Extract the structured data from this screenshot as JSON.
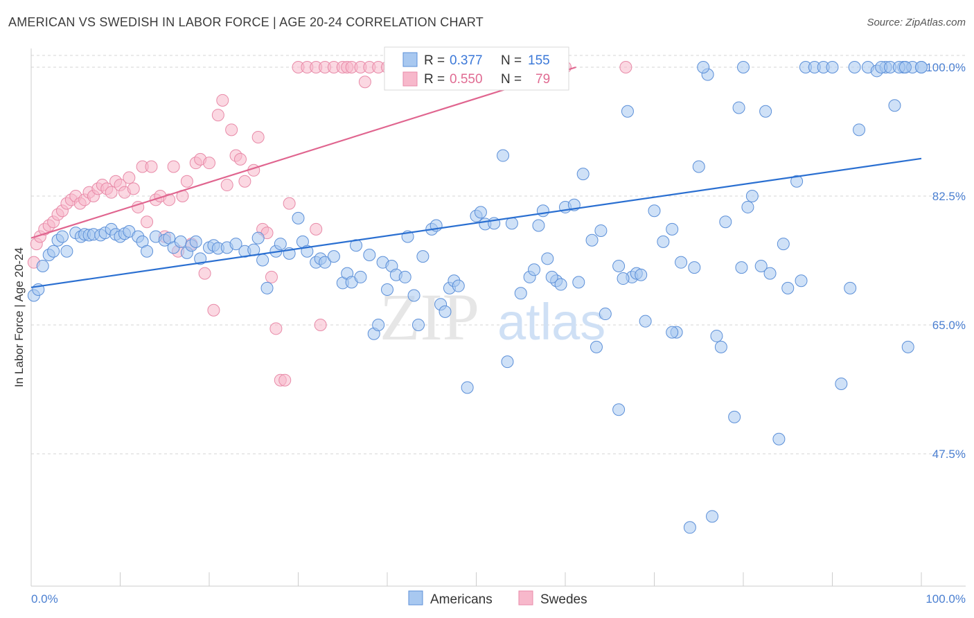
{
  "title": "AMERICAN VS SWEDISH IN LABOR FORCE | AGE 20-24 CORRELATION CHART",
  "source": "Source: ZipAtlas.com",
  "watermark": {
    "zip": "ZIP",
    "atlas": "atlas"
  },
  "colors": {
    "blue_fill": "#a8c8f0",
    "blue_stroke": "#5b8fd8",
    "blue_line": "#2a6fd1",
    "pink_fill": "#f7b8cb",
    "pink_stroke": "#e88aa8",
    "pink_line": "#e0658f",
    "grid": "#d6d6d6",
    "tick_text": "#4a7fd1"
  },
  "legend": {
    "rows": [
      {
        "r_label": "R = ",
        "r_value": "0.377",
        "n_label": "N = ",
        "n_value": "155"
      },
      {
        "r_label": "R = ",
        "r_value": "0.550",
        "n_label": "N = ",
        "n_value": "79"
      }
    ]
  },
  "bottom_legend": [
    "Americans",
    "Swedes"
  ],
  "chart_data": {
    "type": "scatter",
    "title": "AMERICAN VS SWEDISH IN LABOR FORCE | AGE 20-24 CORRELATION CHART",
    "xlabel": "",
    "ylabel": "In Labor Force | Age 20-24",
    "xlim": [
      0,
      100
    ],
    "ylim": [
      32,
      102
    ],
    "x_tick_labels": [
      "0.0%",
      "100.0%"
    ],
    "y_ticks": [
      47.5,
      65.0,
      82.5,
      100.0
    ],
    "y_tick_labels": [
      "47.5%",
      "65.0%",
      "82.5%",
      "100.0%"
    ],
    "grid": "horizontal dashed",
    "legend_position": "top-center",
    "series": [
      {
        "name": "Americans",
        "r": 0.377,
        "n": 155,
        "trend": {
          "x": [
            0,
            100
          ],
          "y": [
            70.1,
            87.6
          ]
        },
        "points": [
          [
            0.3,
            69.0
          ],
          [
            0.8,
            69.8
          ],
          [
            1.3,
            73.0
          ],
          [
            2.0,
            74.5
          ],
          [
            2.5,
            75.0
          ],
          [
            3.0,
            76.5
          ],
          [
            3.5,
            77.0
          ],
          [
            4.0,
            75.0
          ],
          [
            5.0,
            77.5
          ],
          [
            5.6,
            77.0
          ],
          [
            6.0,
            77.3
          ],
          [
            6.5,
            77.2
          ],
          [
            7.0,
            77.3
          ],
          [
            7.8,
            77.2
          ],
          [
            8.3,
            77.5
          ],
          [
            9.0,
            78.0
          ],
          [
            9.5,
            77.3
          ],
          [
            10.0,
            77.0
          ],
          [
            10.5,
            77.4
          ],
          [
            11.0,
            77.7
          ],
          [
            12.0,
            77.0
          ],
          [
            12.5,
            76.3
          ],
          [
            13.0,
            75.0
          ],
          [
            14.0,
            77.0
          ],
          [
            15.0,
            76.5
          ],
          [
            15.5,
            76.8
          ],
          [
            16.0,
            75.5
          ],
          [
            16.8,
            76.3
          ],
          [
            17.5,
            74.8
          ],
          [
            18.0,
            75.8
          ],
          [
            18.5,
            76.3
          ],
          [
            19.0,
            74.0
          ],
          [
            20.0,
            75.5
          ],
          [
            20.5,
            75.8
          ],
          [
            21.0,
            75.4
          ],
          [
            22.0,
            75.5
          ],
          [
            23.0,
            76.0
          ],
          [
            24.0,
            75.0
          ],
          [
            25.0,
            75.2
          ],
          [
            25.5,
            76.8
          ],
          [
            26.0,
            73.8
          ],
          [
            26.5,
            70.0
          ],
          [
            27.5,
            75.0
          ],
          [
            28.0,
            76.0
          ],
          [
            29.0,
            74.7
          ],
          [
            30.0,
            79.5
          ],
          [
            30.5,
            76.3
          ],
          [
            31.0,
            75.0
          ],
          [
            32.0,
            73.5
          ],
          [
            32.5,
            74.0
          ],
          [
            33.0,
            73.5
          ],
          [
            34.0,
            74.3
          ],
          [
            35.0,
            70.7
          ],
          [
            35.5,
            72.0
          ],
          [
            36.0,
            70.8
          ],
          [
            36.5,
            75.8
          ],
          [
            37.0,
            71.5
          ],
          [
            38.0,
            74.5
          ],
          [
            38.5,
            63.8
          ],
          [
            39.0,
            65.0
          ],
          [
            39.5,
            73.5
          ],
          [
            40.0,
            69.8
          ],
          [
            40.5,
            73.0
          ],
          [
            41.0,
            71.8
          ],
          [
            42.0,
            71.5
          ],
          [
            42.3,
            77.0
          ],
          [
            43.0,
            69.0
          ],
          [
            43.5,
            65.0
          ],
          [
            44.0,
            74.3
          ],
          [
            45.0,
            78.0
          ],
          [
            45.5,
            78.5
          ],
          [
            46.0,
            67.8
          ],
          [
            46.5,
            66.8
          ],
          [
            47.0,
            70.0
          ],
          [
            47.5,
            71.0
          ],
          [
            48.0,
            70.3
          ],
          [
            49.0,
            56.5
          ],
          [
            50.0,
            79.8
          ],
          [
            50.5,
            80.3
          ],
          [
            51.0,
            78.7
          ],
          [
            52.0,
            78.8
          ],
          [
            53.0,
            88.0
          ],
          [
            53.5,
            60.0
          ],
          [
            54.0,
            78.8
          ],
          [
            55.0,
            69.3
          ],
          [
            56.0,
            71.5
          ],
          [
            57.0,
            78.5
          ],
          [
            57.5,
            80.5
          ],
          [
            58.0,
            74.0
          ],
          [
            59.0,
            71.0
          ],
          [
            59.5,
            70.5
          ],
          [
            60.0,
            81.0
          ],
          [
            61.0,
            81.3
          ],
          [
            62.0,
            85.5
          ],
          [
            63.0,
            76.5
          ],
          [
            64.0,
            77.8
          ],
          [
            64.5,
            66.5
          ],
          [
            66.0,
            53.5
          ],
          [
            67.0,
            94.0
          ],
          [
            67.5,
            71.5
          ],
          [
            69.0,
            65.5
          ],
          [
            70.0,
            80.5
          ],
          [
            71.0,
            76.3
          ],
          [
            72.0,
            78.0
          ],
          [
            72.5,
            64.0
          ],
          [
            73.0,
            73.5
          ],
          [
            74.0,
            37.5
          ],
          [
            75.0,
            86.5
          ],
          [
            76.0,
            99.0
          ],
          [
            76.5,
            39.0
          ],
          [
            77.0,
            63.5
          ],
          [
            78.0,
            79.0
          ],
          [
            79.0,
            52.5
          ],
          [
            79.5,
            94.5
          ],
          [
            80.0,
            100.0
          ],
          [
            80.5,
            81.0
          ],
          [
            81.0,
            82.5
          ],
          [
            82.0,
            73.0
          ],
          [
            82.5,
            94.0
          ],
          [
            83.0,
            72.0
          ],
          [
            84.0,
            49.5
          ],
          [
            85.0,
            70.0
          ],
          [
            86.0,
            84.5
          ],
          [
            87.0,
            100.0
          ],
          [
            88.0,
            100.0
          ],
          [
            89.0,
            100.0
          ],
          [
            90.0,
            100.0
          ],
          [
            91.0,
            57.0
          ],
          [
            92.0,
            70.0
          ],
          [
            93.0,
            91.5
          ],
          [
            94.0,
            100.0
          ],
          [
            95.0,
            99.5
          ],
          [
            96.0,
            100.0
          ],
          [
            97.0,
            94.8
          ],
          [
            98.0,
            100.0
          ],
          [
            98.5,
            62.0
          ],
          [
            99.0,
            100.0
          ],
          [
            100.0,
            100.0
          ],
          [
            75.5,
            100.0
          ],
          [
            92.5,
            100.0
          ],
          [
            95.5,
            100.0
          ],
          [
            96.5,
            100.0
          ],
          [
            97.5,
            100.0
          ],
          [
            98.2,
            100.0
          ],
          [
            100.0,
            100.0
          ],
          [
            77.5,
            62.0
          ],
          [
            86.5,
            71.0
          ],
          [
            84.5,
            76.0
          ],
          [
            68.0,
            72.0
          ],
          [
            72.0,
            64.0
          ],
          [
            63.5,
            62.0
          ],
          [
            58.5,
            71.5
          ],
          [
            56.5,
            72.5
          ],
          [
            66.5,
            71.3
          ],
          [
            61.5,
            70.8
          ],
          [
            66.0,
            73.0
          ],
          [
            68.5,
            71.8
          ],
          [
            74.5,
            72.8
          ],
          [
            79.8,
            72.8
          ]
        ]
      },
      {
        "name": "Swedes",
        "r": 0.55,
        "n": 79,
        "trend": {
          "x": [
            0,
            61.2
          ],
          "y": [
            76.8,
            100.0
          ]
        },
        "points": [
          [
            0.3,
            73.5
          ],
          [
            0.6,
            76.0
          ],
          [
            1.0,
            77.0
          ],
          [
            1.5,
            78.0
          ],
          [
            2.0,
            78.5
          ],
          [
            2.5,
            79.0
          ],
          [
            3.0,
            80.0
          ],
          [
            3.5,
            80.5
          ],
          [
            4.0,
            81.5
          ],
          [
            4.5,
            82.0
          ],
          [
            5.0,
            82.5
          ],
          [
            5.5,
            81.5
          ],
          [
            6.0,
            82.0
          ],
          [
            6.5,
            83.0
          ],
          [
            7.0,
            82.5
          ],
          [
            7.5,
            83.5
          ],
          [
            8.0,
            84.0
          ],
          [
            8.5,
            83.5
          ],
          [
            9.0,
            83.0
          ],
          [
            9.5,
            84.5
          ],
          [
            10.0,
            84.0
          ],
          [
            10.5,
            83.0
          ],
          [
            11.0,
            85.0
          ],
          [
            11.5,
            83.5
          ],
          [
            12.0,
            81.0
          ],
          [
            12.5,
            86.5
          ],
          [
            13.0,
            79.0
          ],
          [
            13.5,
            86.5
          ],
          [
            14.0,
            82.0
          ],
          [
            14.5,
            82.5
          ],
          [
            15.0,
            77.0
          ],
          [
            15.5,
            82.0
          ],
          [
            16.0,
            86.5
          ],
          [
            16.5,
            75.0
          ],
          [
            17.0,
            82.5
          ],
          [
            17.5,
            84.5
          ],
          [
            18.0,
            76.0
          ],
          [
            18.5,
            87.0
          ],
          [
            19.0,
            87.5
          ],
          [
            19.5,
            72.0
          ],
          [
            20.0,
            87.0
          ],
          [
            20.5,
            67.0
          ],
          [
            21.0,
            93.5
          ],
          [
            21.5,
            95.5
          ],
          [
            22.0,
            84.0
          ],
          [
            22.5,
            91.5
          ],
          [
            23.0,
            88.0
          ],
          [
            23.5,
            87.5
          ],
          [
            24.0,
            84.5
          ],
          [
            25.0,
            86.0
          ],
          [
            25.5,
            90.5
          ],
          [
            26.0,
            78.0
          ],
          [
            26.5,
            77.5
          ],
          [
            27.0,
            71.5
          ],
          [
            27.5,
            64.5
          ],
          [
            28.0,
            57.5
          ],
          [
            28.5,
            57.5
          ],
          [
            29.0,
            81.5
          ],
          [
            30.0,
            100.0
          ],
          [
            31.0,
            100.0
          ],
          [
            32.0,
            100.0
          ],
          [
            33.0,
            100.0
          ],
          [
            34.0,
            100.0
          ],
          [
            35.0,
            100.0
          ],
          [
            35.5,
            100.0
          ],
          [
            36.0,
            100.0
          ],
          [
            37.0,
            100.0
          ],
          [
            37.5,
            98.0
          ],
          [
            38.0,
            100.0
          ],
          [
            39.0,
            100.0
          ],
          [
            40.0,
            100.0
          ],
          [
            40.5,
            99.0
          ],
          [
            41.0,
            100.0
          ],
          [
            41.5,
            100.0
          ],
          [
            59.5,
            100.0
          ],
          [
            60.0,
            100.0
          ],
          [
            32.0,
            78.0
          ],
          [
            32.5,
            65.0
          ],
          [
            66.8,
            100.0
          ]
        ]
      }
    ]
  }
}
